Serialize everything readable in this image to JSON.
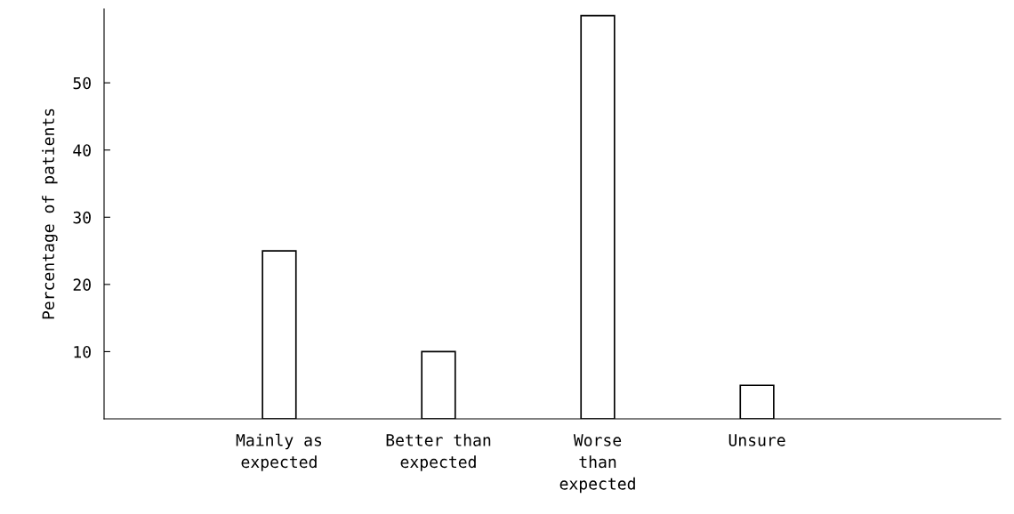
{
  "chart_data": {
    "type": "bar",
    "ylabel": "Percentage of patients",
    "categories": [
      "Mainly as\nexpected",
      "Better than\nexpected",
      "Worse\nthan\nexpected",
      "Unsure"
    ],
    "values": [
      25,
      10,
      60,
      5
    ],
    "color": "#ffffff",
    "ylim": [
      0,
      61
    ],
    "yticks": [
      10,
      20,
      30,
      40,
      50
    ],
    "grid": false
  }
}
